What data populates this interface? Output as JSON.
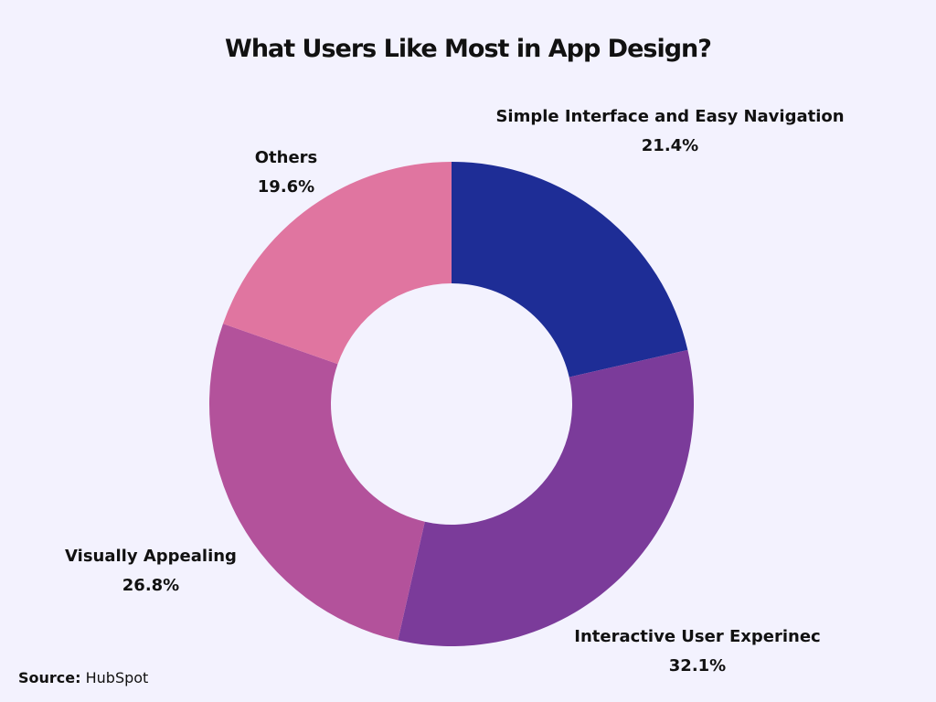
{
  "chart_data": {
    "type": "pie",
    "subtype": "donut",
    "title": "What Users Like Most in App Design?",
    "slices": [
      {
        "label": "Simple Interface and Easy Navigation",
        "value": 21.4,
        "display": "21.4%",
        "color": "#1e2d96"
      },
      {
        "label": "Interactive User Experinec",
        "value": 32.1,
        "display": "32.1%",
        "color": "#7b3b9a"
      },
      {
        "label": "Visually Appealing",
        "value": 26.8,
        "display": "26.8%",
        "color": "#b3529b"
      },
      {
        "label": "Others",
        "value": 19.6,
        "display": "19.6%",
        "color": "#e075a0"
      }
    ],
    "start": "top",
    "direction": "clockwise",
    "legend": "none"
  },
  "source": {
    "label": "Source:",
    "value": "HubSpot"
  },
  "colors": {
    "background": "#f3f2fe",
    "text": "#111111"
  }
}
